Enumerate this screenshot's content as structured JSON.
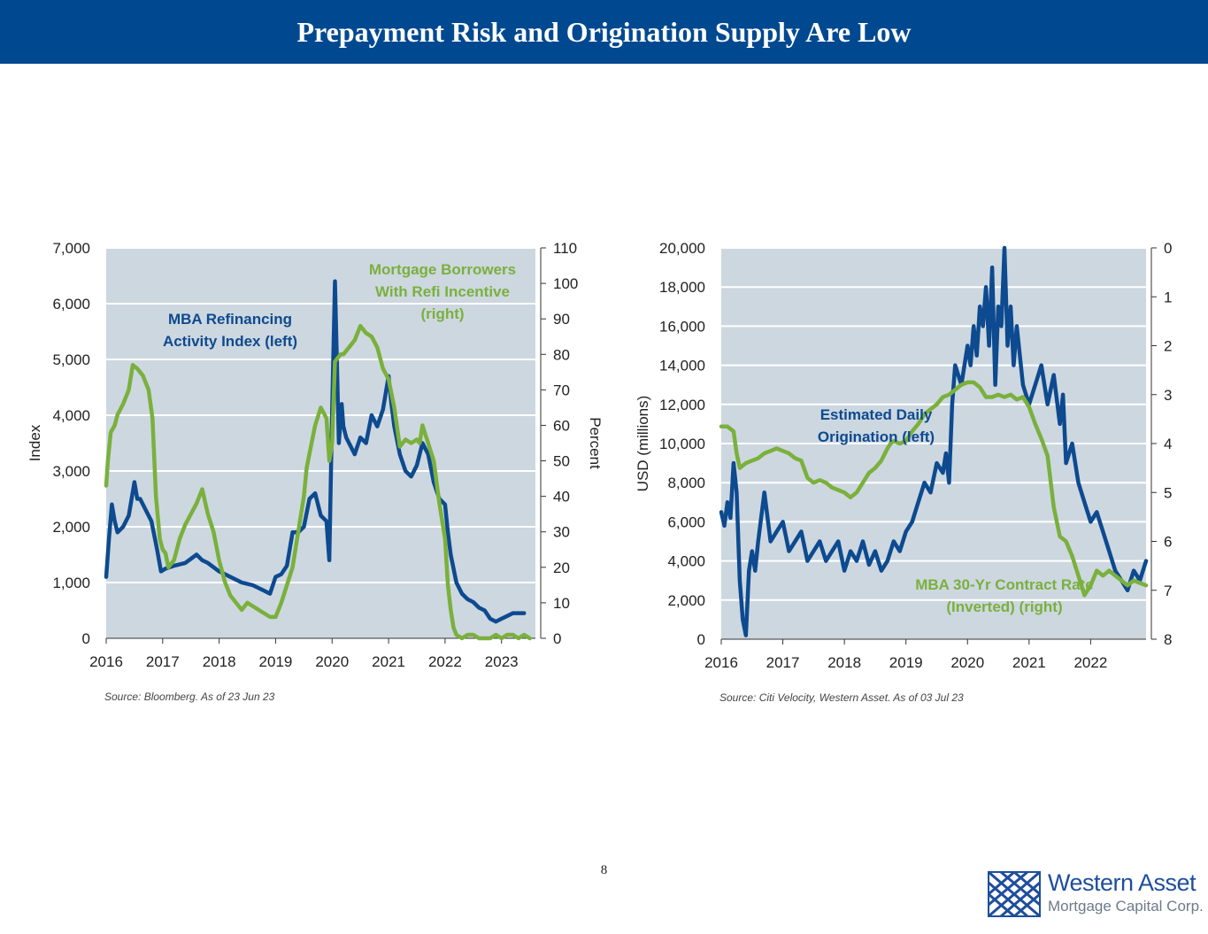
{
  "header": {
    "title": "Prepayment Risk and Origination Supply Are Low"
  },
  "page_number": "8",
  "logo": {
    "name": "Western Asset",
    "subtitle": "Mortgage Capital Corp."
  },
  "colors": {
    "banner": "#004990",
    "navy": "#0d4a8f",
    "green": "#7ab03c",
    "plot_bg": "#cdd7e0"
  },
  "chart_data": [
    {
      "type": "line",
      "title": "",
      "ylabel": "Index",
      "y2label": "Percent",
      "x_ticks": [
        "2016",
        "2017",
        "2018",
        "2019",
        "2020",
        "2021",
        "2022",
        "2023"
      ],
      "xlim": [
        2016,
        2023.6
      ],
      "ylim": [
        0,
        7000
      ],
      "y_ticks": [
        "0",
        "1,000",
        "2,000",
        "3,000",
        "4,000",
        "5,000",
        "6,000",
        "7,000"
      ],
      "y2lim": [
        0,
        110
      ],
      "y2_ticks": [
        "0",
        "10",
        "20",
        "30",
        "40",
        "50",
        "60",
        "70",
        "80",
        "90",
        "100",
        "110"
      ],
      "annotations": [
        {
          "lines": [
            "MBA Refinancing",
            "Activity Index (left)"
          ],
          "series": "left"
        },
        {
          "lines": [
            "Mortgage Borrowers",
            "With Refi Incentive",
            "(right)"
          ],
          "series": "right"
        }
      ],
      "source": "Source: Bloomberg. As of 23 Jun 23",
      "series": [
        {
          "name": "MBA Refinancing Activity Index (left)",
          "axis": "left",
          "x": [
            2016.0,
            2016.05,
            2016.1,
            2016.15,
            2016.2,
            2016.3,
            2016.4,
            2016.5,
            2016.55,
            2016.6,
            2016.7,
            2016.8,
            2016.9,
            2016.97,
            2017.05,
            2017.2,
            2017.4,
            2017.6,
            2017.7,
            2017.8,
            2018.0,
            2018.2,
            2018.4,
            2018.6,
            2018.8,
            2018.9,
            2019.0,
            2019.1,
            2019.2,
            2019.3,
            2019.4,
            2019.5,
            2019.6,
            2019.7,
            2019.8,
            2019.9,
            2019.95,
            2020.0,
            2020.05,
            2020.12,
            2020.17,
            2020.2,
            2020.25,
            2020.3,
            2020.4,
            2020.5,
            2020.6,
            2020.7,
            2020.8,
            2020.9,
            2021.0,
            2021.05,
            2021.1,
            2021.2,
            2021.3,
            2021.4,
            2021.5,
            2021.6,
            2021.7,
            2021.8,
            2021.9,
            2022.0,
            2022.05,
            2022.1,
            2022.2,
            2022.3,
            2022.4,
            2022.5,
            2022.6,
            2022.7,
            2022.8,
            2022.9,
            2023.0,
            2023.1,
            2023.2,
            2023.3,
            2023.4
          ],
          "values": [
            1100,
            1800,
            2400,
            2100,
            1900,
            2000,
            2200,
            2800,
            2500,
            2500,
            2300,
            2100,
            1600,
            1200,
            1250,
            1300,
            1350,
            1500,
            1400,
            1350,
            1200,
            1100,
            1000,
            950,
            850,
            800,
            1100,
            1150,
            1300,
            1900,
            1900,
            2000,
            2500,
            2600,
            2200,
            2100,
            1400,
            4100,
            6400,
            3500,
            4200,
            3800,
            3600,
            3500,
            3300,
            3600,
            3500,
            4000,
            3800,
            4100,
            4700,
            4200,
            3800,
            3300,
            3000,
            2900,
            3100,
            3500,
            3300,
            2800,
            2500,
            2400,
            1900,
            1500,
            1000,
            800,
            700,
            650,
            550,
            500,
            350,
            300,
            350,
            400,
            450,
            450,
            450
          ]
        },
        {
          "name": "Mortgage Borrowers With Refi Incentive (right)",
          "axis": "right",
          "x": [
            2016.0,
            2016.03,
            2016.08,
            2016.15,
            2016.2,
            2016.3,
            2016.4,
            2016.47,
            2016.55,
            2016.65,
            2016.75,
            2016.82,
            2016.88,
            2016.95,
            2017.0,
            2017.05,
            2017.1,
            2017.2,
            2017.3,
            2017.4,
            2017.5,
            2017.6,
            2017.7,
            2017.8,
            2017.9,
            2018.0,
            2018.1,
            2018.2,
            2018.3,
            2018.4,
            2018.5,
            2018.6,
            2018.7,
            2018.8,
            2018.9,
            2019.0,
            2019.1,
            2019.2,
            2019.3,
            2019.4,
            2019.5,
            2019.55,
            2019.6,
            2019.7,
            2019.8,
            2019.9,
            2019.95,
            2020.0,
            2020.05,
            2020.15,
            2020.2,
            2020.3,
            2020.4,
            2020.5,
            2020.55,
            2020.6,
            2020.7,
            2020.8,
            2020.9,
            2021.0,
            2021.1,
            2021.2,
            2021.3,
            2021.4,
            2021.5,
            2021.55,
            2021.6,
            2021.7,
            2021.8,
            2021.9,
            2022.0,
            2022.05,
            2022.1,
            2022.15,
            2022.2,
            2022.3,
            2022.4,
            2022.5,
            2022.6,
            2022.7,
            2022.8,
            2022.9,
            2023.0,
            2023.1,
            2023.2,
            2023.3,
            2023.4,
            2023.5
          ],
          "values": [
            43,
            50,
            58,
            60,
            63,
            66,
            70,
            77,
            76,
            74,
            70,
            62,
            40,
            28,
            25,
            24,
            20,
            22,
            28,
            32,
            35,
            38,
            42,
            35,
            30,
            22,
            16,
            12,
            10,
            8,
            10,
            9,
            8,
            7,
            6,
            6,
            10,
            15,
            20,
            30,
            40,
            48,
            52,
            60,
            65,
            62,
            50,
            55,
            78,
            80,
            80,
            82,
            84,
            88,
            87,
            86,
            85,
            82,
            76,
            73,
            65,
            54,
            56,
            55,
            56,
            55,
            60,
            55,
            50,
            38,
            28,
            15,
            8,
            3,
            1,
            0,
            1,
            1,
            0,
            0,
            0,
            1,
            0,
            1,
            1,
            0,
            1,
            0
          ]
        }
      ]
    },
    {
      "type": "line",
      "title": "",
      "ylabel": "USD (millions)",
      "x_ticks": [
        "2016",
        "2017",
        "2018",
        "2019",
        "2020",
        "2021",
        "2022"
      ],
      "xlim": [
        2016,
        2022.9
      ],
      "ylim": [
        0,
        20000
      ],
      "y_ticks": [
        "0",
        "2,000",
        "4,000",
        "6,000",
        "8,000",
        "10,000",
        "12,000",
        "14,000",
        "16,000",
        "18,000",
        "20,000"
      ],
      "y2lim": [
        8,
        0
      ],
      "y2_ticks": [
        "0",
        "1",
        "2",
        "3",
        "4",
        "5",
        "6",
        "7",
        "8"
      ],
      "annotations": [
        {
          "lines": [
            "Estimated Daily",
            "Origination (left)"
          ],
          "series": "left"
        },
        {
          "lines": [
            "MBA 30-Yr Contract Rate",
            "(Inverted) (right)"
          ],
          "series": "right"
        }
      ],
      "source": "Source: Citi Velocity, Western Asset. As of 03 Jul 23",
      "series": [
        {
          "name": "Estimated Daily Origination (left)",
          "axis": "left",
          "x": [
            2016.0,
            2016.05,
            2016.1,
            2016.15,
            2016.2,
            2016.25,
            2016.3,
            2016.35,
            2016.4,
            2016.45,
            2016.5,
            2016.55,
            2016.6,
            2016.7,
            2016.8,
            2016.9,
            2017.0,
            2017.1,
            2017.2,
            2017.3,
            2017.4,
            2017.5,
            2017.6,
            2017.7,
            2017.8,
            2017.9,
            2018.0,
            2018.1,
            2018.2,
            2018.3,
            2018.4,
            2018.5,
            2018.6,
            2018.7,
            2018.8,
            2018.9,
            2019.0,
            2019.1,
            2019.2,
            2019.3,
            2019.4,
            2019.5,
            2019.6,
            2019.65,
            2019.7,
            2019.75,
            2019.8,
            2019.9,
            2020.0,
            2020.05,
            2020.1,
            2020.15,
            2020.2,
            2020.25,
            2020.3,
            2020.35,
            2020.4,
            2020.45,
            2020.5,
            2020.55,
            2020.6,
            2020.65,
            2020.7,
            2020.75,
            2020.8,
            2020.9,
            2021.0,
            2021.1,
            2021.2,
            2021.3,
            2021.4,
            2021.5,
            2021.55,
            2021.6,
            2021.7,
            2021.8,
            2021.9,
            2022.0,
            2022.1,
            2022.2,
            2022.3,
            2022.4,
            2022.5,
            2022.6,
            2022.7,
            2022.8,
            2022.9
          ],
          "values": [
            6500,
            5800,
            7000,
            6200,
            9000,
            7500,
            3000,
            1000,
            200,
            3500,
            4500,
            3500,
            5000,
            7500,
            5000,
            5500,
            6000,
            4500,
            5000,
            5500,
            4000,
            4500,
            5000,
            4000,
            4500,
            5000,
            3500,
            4500,
            4000,
            5000,
            3800,
            4500,
            3500,
            4000,
            5000,
            4500,
            5500,
            6000,
            7000,
            8000,
            7500,
            9000,
            8500,
            9500,
            8000,
            12000,
            14000,
            13000,
            15000,
            14000,
            16000,
            14500,
            17000,
            16000,
            18000,
            15000,
            19000,
            13000,
            17000,
            16000,
            20000,
            15000,
            17000,
            14000,
            16000,
            13000,
            12000,
            13000,
            14000,
            12000,
            13500,
            11000,
            12500,
            9000,
            10000,
            8000,
            7000,
            6000,
            6500,
            5500,
            4500,
            3500,
            3000,
            2500,
            3500,
            3000,
            4000
          ]
        },
        {
          "name": "MBA 30-Yr Contract Rate (Inverted) (right)",
          "axis": "right",
          "x": [
            2016.0,
            2016.1,
            2016.2,
            2016.25,
            2016.3,
            2016.4,
            2016.5,
            2016.6,
            2016.7,
            2016.8,
            2016.9,
            2017.0,
            2017.1,
            2017.2,
            2017.3,
            2017.4,
            2017.5,
            2017.6,
            2017.7,
            2017.8,
            2017.9,
            2018.0,
            2018.1,
            2018.2,
            2018.3,
            2018.4,
            2018.5,
            2018.6,
            2018.7,
            2018.75,
            2018.8,
            2018.9,
            2019.0,
            2019.1,
            2019.2,
            2019.3,
            2019.4,
            2019.5,
            2019.6,
            2019.7,
            2019.8,
            2019.9,
            2020.0,
            2020.1,
            2020.2,
            2020.3,
            2020.4,
            2020.5,
            2020.6,
            2020.7,
            2020.8,
            2020.9,
            2021.0,
            2021.1,
            2021.2,
            2021.3,
            2021.4,
            2021.5,
            2021.6,
            2021.7,
            2021.8,
            2021.9,
            2022.0,
            2022.1,
            2022.2,
            2022.3,
            2022.4,
            2022.5,
            2022.6,
            2022.7,
            2022.8,
            2022.9
          ],
          "values": [
            3.65,
            3.65,
            3.75,
            4.2,
            4.5,
            4.4,
            4.35,
            4.3,
            4.2,
            4.15,
            4.1,
            4.15,
            4.2,
            4.3,
            4.35,
            4.7,
            4.8,
            4.75,
            4.8,
            4.9,
            4.95,
            5.0,
            5.1,
            5.0,
            4.8,
            4.6,
            4.5,
            4.35,
            4.1,
            4.0,
            3.95,
            4.0,
            3.95,
            3.75,
            3.6,
            3.4,
            3.3,
            3.2,
            3.05,
            3.0,
            2.9,
            2.8,
            2.75,
            2.75,
            2.85,
            3.05,
            3.05,
            3.0,
            3.05,
            3.0,
            3.1,
            3.05,
            3.25,
            3.6,
            3.9,
            4.25,
            5.3,
            5.9,
            6.0,
            6.3,
            6.7,
            7.1,
            6.9,
            6.6,
            6.7,
            6.6,
            6.7,
            6.8,
            6.9,
            6.8,
            6.85,
            6.9
          ]
        }
      ]
    }
  ]
}
